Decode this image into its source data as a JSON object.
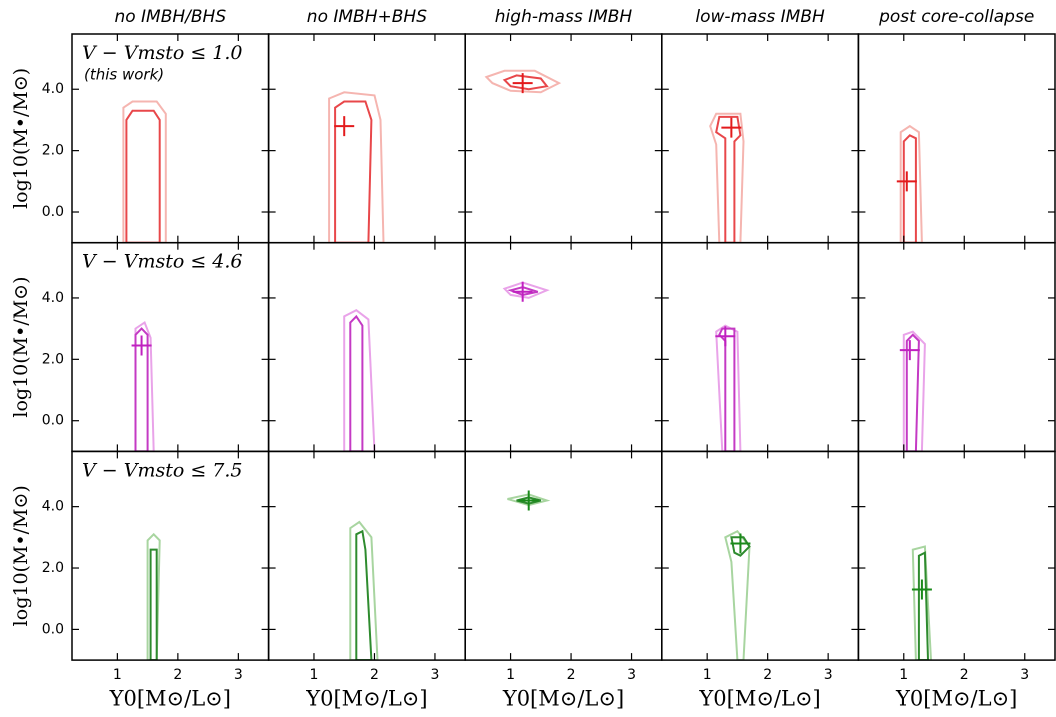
{
  "chart_data": {
    "type": "contour",
    "column_titles": [
      "no IMBH/BHS",
      "no IMBH+BHS",
      "high-mass IMBH",
      "low-mass IMBH",
      "post core-collapse"
    ],
    "xlabel": "Υ0[M⊙/L⊙]",
    "ylabel": "log10(M•/M⊙)",
    "note": "(this work)",
    "xlim": [
      0.25,
      3.5
    ],
    "ylim": [
      -1,
      5.8
    ],
    "xticks": [
      1,
      2,
      3
    ],
    "yticks": [
      {
        "value": 0,
        "label": "0.0"
      },
      {
        "value": 2,
        "label": "2.0"
      },
      {
        "value": 4,
        "label": "4.0"
      }
    ],
    "rows": [
      {
        "label": "V − Vmsto ≤ 1.0",
        "color": "#e31a1c",
        "contour_colors": [
          "#f5b5b0",
          "#e8474a"
        ],
        "panels": [
          {
            "marker": null,
            "contours": [
              {
                "x": [
                  1.1,
                  1.1,
                  1.25,
                  1.65,
                  1.8,
                  1.8
                ],
                "y": [
                  -1,
                  3.4,
                  3.6,
                  3.6,
                  3.2,
                  -1
                ]
              },
              {
                "x": [
                  1.15,
                  1.15,
                  1.25,
                  1.6,
                  1.7,
                  1.7
                ],
                "y": [
                  -1,
                  3.0,
                  3.3,
                  3.3,
                  3.0,
                  -1
                ]
              }
            ]
          },
          {
            "marker": {
              "x": 1.5,
              "y": 2.8
            },
            "contours": [
              {
                "x": [
                  1.25,
                  1.25,
                  1.5,
                  2.0,
                  2.1,
                  2.15
                ],
                "y": [
                  -1,
                  3.7,
                  3.9,
                  3.8,
                  3.0,
                  -1
                ]
              },
              {
                "x": [
                  1.35,
                  1.35,
                  1.5,
                  1.85,
                  1.95,
                  1.9
                ],
                "y": [
                  -1,
                  3.4,
                  3.6,
                  3.6,
                  3.0,
                  -1
                ]
              }
            ]
          },
          {
            "marker": {
              "x": 1.2,
              "y": 4.2
            },
            "contours": [
              {
                "x": [
                  0.6,
                  0.9,
                  1.4,
                  1.8,
                  1.5,
                  1.0,
                  0.7
                ],
                "y": [
                  4.4,
                  4.6,
                  4.6,
                  4.2,
                  3.9,
                  3.95,
                  4.2
                ]
              },
              {
                "x": [
                  0.9,
                  1.1,
                  1.5,
                  1.6,
                  1.3,
                  1.0
                ],
                "y": [
                  4.3,
                  4.45,
                  4.35,
                  4.1,
                  4.0,
                  4.1
                ]
              }
            ]
          },
          {
            "marker": {
              "x": 1.4,
              "y": 2.75
            },
            "contours": [
              {
                "x": [
                  1.2,
                  1.15,
                  1.05,
                  1.15,
                  1.55,
                  1.6,
                  1.55
                ],
                "y": [
                  -1,
                  2.2,
                  2.8,
                  3.2,
                  3.2,
                  2.3,
                  -1
                ]
              },
              {
                "x": [
                  1.3,
                  1.3,
                  1.15,
                  1.2,
                  1.5,
                  1.55,
                  1.45,
                  1.45
                ],
                "y": [
                  -1,
                  2.4,
                  2.6,
                  3.1,
                  3.1,
                  2.5,
                  2.3,
                  -1
                ]
              }
            ]
          },
          {
            "marker": {
              "x": 1.05,
              "y": 1.0
            },
            "contours": [
              {
                "x": [
                  0.95,
                  0.95,
                  1.1,
                  1.25,
                  1.3
                ],
                "y": [
                  -1,
                  2.6,
                  2.8,
                  2.6,
                  -1
                ]
              },
              {
                "x": [
                  1.0,
                  1.0,
                  1.1,
                  1.2,
                  1.2
                ],
                "y": [
                  -1,
                  2.3,
                  2.5,
                  2.4,
                  -1
                ]
              }
            ]
          }
        ]
      },
      {
        "label": "V − Vmsto ≤ 4.6",
        "color": "#c020c0",
        "contour_colors": [
          "#e9a3e9",
          "#c43ac4"
        ],
        "panels": [
          {
            "marker": {
              "x": 1.4,
              "y": 2.45
            },
            "contours": [
              {
                "x": [
                  1.3,
                  1.3,
                  1.45,
                  1.55,
                  1.6
                ],
                "y": [
                  -1,
                  3.0,
                  3.2,
                  2.7,
                  -1
                ]
              },
              {
                "x": [
                  1.3,
                  1.3,
                  1.4,
                  1.5,
                  1.5
                ],
                "y": [
                  -1,
                  2.8,
                  3.0,
                  2.8,
                  -1
                ]
              }
            ]
          },
          {
            "marker": null,
            "contours": [
              {
                "x": [
                  1.5,
                  1.5,
                  1.7,
                  1.9,
                  2.0
                ],
                "y": [
                  -1,
                  3.4,
                  3.6,
                  3.3,
                  -1
                ]
              },
              {
                "x": [
                  1.6,
                  1.6,
                  1.7,
                  1.8,
                  1.8
                ],
                "y": [
                  -1,
                  3.2,
                  3.4,
                  3.1,
                  -1
                ]
              }
            ]
          },
          {
            "marker": {
              "x": 1.2,
              "y": 4.2
            },
            "contours": [
              {
                "x": [
                  0.9,
                  1.2,
                  1.6,
                  1.3,
                  1.0
                ],
                "y": [
                  4.3,
                  4.5,
                  4.25,
                  4.0,
                  4.1
                ]
              },
              {
                "x": [
                  1.0,
                  1.2,
                  1.45,
                  1.2
                ],
                "y": [
                  4.25,
                  4.35,
                  4.2,
                  4.1
                ]
              }
            ]
          },
          {
            "marker": {
              "x": 1.3,
              "y": 2.75
            },
            "contours": [
              {
                "x": [
                  1.25,
                  1.15,
                  1.3,
                  1.5,
                  1.55
                ],
                "y": [
                  -1,
                  2.9,
                  3.1,
                  2.9,
                  -1
                ]
              },
              {
                "x": [
                  1.3,
                  1.3,
                  1.2,
                  1.25,
                  1.45,
                  1.45
                ],
                "y": [
                  -1,
                  2.6,
                  2.8,
                  3.0,
                  3.0,
                  -1
                ]
              }
            ]
          },
          {
            "marker": {
              "x": 1.1,
              "y": 2.3
            },
            "contours": [
              {
                "x": [
                  1.0,
                  1.0,
                  1.15,
                  1.35,
                  1.3
                ],
                "y": [
                  -1,
                  2.8,
                  2.9,
                  2.5,
                  -1
                ]
              },
              {
                "x": [
                  1.05,
                  1.05,
                  1.15,
                  1.25,
                  1.2
                ],
                "y": [
                  -1,
                  2.6,
                  2.8,
                  2.6,
                  -1
                ]
              }
            ]
          }
        ]
      },
      {
        "label": "V − Vmsto ≤ 7.5",
        "color": "#1a8a1a",
        "contour_colors": [
          "#a8d5a0",
          "#2e8b2e"
        ],
        "panels": [
          {
            "marker": null,
            "contours": [
              {
                "x": [
                  1.5,
                  1.5,
                  1.6,
                  1.7,
                  1.65
                ],
                "y": [
                  -1,
                  2.9,
                  3.1,
                  2.9,
                  -1
                ]
              },
              {
                "x": [
                  1.55,
                  1.55,
                  1.65,
                  1.65
                ],
                "y": [
                  -1,
                  2.6,
                  2.6,
                  -1
                ]
              }
            ]
          },
          {
            "marker": null,
            "contours": [
              {
                "x": [
                  1.6,
                  1.6,
                  1.75,
                  1.95,
                  2.05
                ],
                "y": [
                  -1,
                  3.3,
                  3.5,
                  3.0,
                  -1
                ]
              },
              {
                "x": [
                  1.7,
                  1.7,
                  1.8,
                  1.85,
                  1.95
                ],
                "y": [
                  -1,
                  3.1,
                  3.2,
                  2.6,
                  -1
                ]
              }
            ]
          },
          {
            "marker": {
              "x": 1.3,
              "y": 4.2
            },
            "contours": [
              {
                "x": [
                  0.95,
                  1.3,
                  1.6,
                  1.3
                ],
                "y": [
                  4.25,
                  4.4,
                  4.2,
                  4.05
                ]
              },
              {
                "x": [
                  1.1,
                  1.3,
                  1.5,
                  1.3
                ],
                "y": [
                  4.2,
                  4.3,
                  4.2,
                  4.1
                ]
              }
            ]
          },
          {
            "marker": {
              "x": 1.55,
              "y": 2.8
            },
            "contours": [
              {
                "x": [
                  1.5,
                  1.4,
                  1.3,
                  1.5,
                  1.7,
                  1.6
                ],
                "y": [
                  -1,
                  2.2,
                  3.0,
                  3.2,
                  2.7,
                  -1
                ]
              },
              {
                "x": [
                  1.45,
                  1.4,
                  1.6,
                  1.7,
                  1.55
                ],
                "y": [
                  2.5,
                  3.0,
                  3.0,
                  2.7,
                  2.4
                ]
              }
            ]
          },
          {
            "marker": {
              "x": 1.3,
              "y": 1.3
            },
            "contours": [
              {
                "x": [
                  1.2,
                  1.15,
                  1.35,
                  1.45
                ],
                "y": [
                  -1,
                  2.6,
                  2.7,
                  -1
                ]
              },
              {
                "x": [
                  1.25,
                  1.25,
                  1.35,
                  1.4
                ],
                "y": [
                  -1,
                  2.4,
                  2.5,
                  -1
                ]
              }
            ]
          }
        ]
      }
    ]
  }
}
